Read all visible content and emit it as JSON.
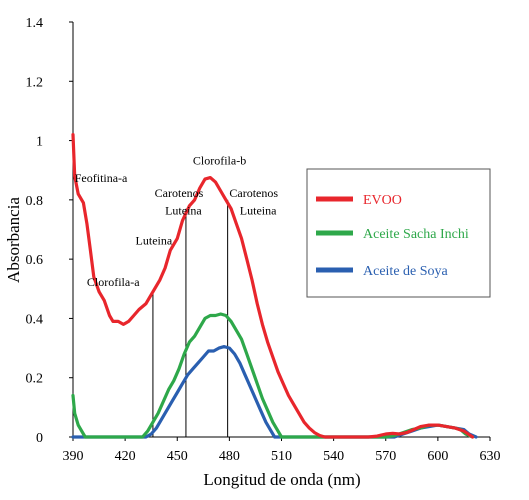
{
  "chart_data": {
    "type": "line",
    "xlabel": "Longitud de onda (nm)",
    "ylabel": "Absorbancia",
    "xlim": [
      390,
      630
    ],
    "ylim": [
      0,
      1.4
    ],
    "x_ticks": [
      "390",
      "420",
      "450",
      "480",
      "510",
      "540",
      "570",
      "600",
      "630"
    ],
    "y_ticks": [
      "0",
      "0.2",
      "0.4",
      "0.6",
      "0.8",
      "1",
      "1.2",
      "1.4"
    ],
    "grid": false,
    "legend_position": "right",
    "series": [
      {
        "name": "EVOO",
        "color": "#e8262c",
        "points": [
          [
            390,
            1.02
          ],
          [
            391,
            0.88
          ],
          [
            393,
            0.82
          ],
          [
            396,
            0.79
          ],
          [
            398,
            0.72
          ],
          [
            400,
            0.63
          ],
          [
            402,
            0.54
          ],
          [
            405,
            0.49
          ],
          [
            408,
            0.46
          ],
          [
            411,
            0.41
          ],
          [
            413,
            0.39
          ],
          [
            416,
            0.39
          ],
          [
            419,
            0.38
          ],
          [
            422,
            0.39
          ],
          [
            425,
            0.41
          ],
          [
            428,
            0.43
          ],
          [
            432,
            0.45
          ],
          [
            436,
            0.49
          ],
          [
            440,
            0.53
          ],
          [
            443,
            0.57
          ],
          [
            446,
            0.63
          ],
          [
            450,
            0.67
          ],
          [
            453,
            0.73
          ],
          [
            457,
            0.78
          ],
          [
            460,
            0.8
          ],
          [
            463,
            0.84
          ],
          [
            466,
            0.87
          ],
          [
            469,
            0.875
          ],
          [
            472,
            0.86
          ],
          [
            475,
            0.83
          ],
          [
            478,
            0.8
          ],
          [
            481,
            0.77
          ],
          [
            484,
            0.72
          ],
          [
            487,
            0.67
          ],
          [
            490,
            0.6
          ],
          [
            493,
            0.53
          ],
          [
            496,
            0.45
          ],
          [
            499,
            0.38
          ],
          [
            502,
            0.32
          ],
          [
            505,
            0.27
          ],
          [
            508,
            0.22
          ],
          [
            511,
            0.18
          ],
          [
            514,
            0.14
          ],
          [
            517,
            0.11
          ],
          [
            520,
            0.08
          ],
          [
            523,
            0.05
          ],
          [
            526,
            0.03
          ],
          [
            529,
            0.015
          ],
          [
            532,
            0.005
          ],
          [
            535,
            0.0
          ],
          [
            540,
            0.0
          ],
          [
            548,
            0.0
          ],
          [
            555,
            0.0
          ],
          [
            560,
            0.0
          ],
          [
            565,
            0.003
          ],
          [
            570,
            0.01
          ],
          [
            574,
            0.012
          ],
          [
            578,
            0.01
          ],
          [
            582,
            0.015
          ],
          [
            586,
            0.025
          ],
          [
            590,
            0.035
          ],
          [
            595,
            0.04
          ],
          [
            600,
            0.04
          ],
          [
            605,
            0.035
          ],
          [
            610,
            0.03
          ],
          [
            615,
            0.02
          ],
          [
            620,
            0.0
          ]
        ]
      },
      {
        "name": "Aceite Sacha Inchi",
        "color": "#2ea84a",
        "points": [
          [
            390,
            0.14
          ],
          [
            391,
            0.08
          ],
          [
            393,
            0.04
          ],
          [
            395,
            0.02
          ],
          [
            397,
            0.0
          ],
          [
            400,
            0.0
          ],
          [
            410,
            0.0
          ],
          [
            420,
            0.0
          ],
          [
            430,
            0.0
          ],
          [
            433,
            0.02
          ],
          [
            436,
            0.05
          ],
          [
            439,
            0.08
          ],
          [
            442,
            0.12
          ],
          [
            445,
            0.16
          ],
          [
            448,
            0.19
          ],
          [
            451,
            0.23
          ],
          [
            454,
            0.28
          ],
          [
            457,
            0.32
          ],
          [
            460,
            0.34
          ],
          [
            463,
            0.37
          ],
          [
            466,
            0.4
          ],
          [
            469,
            0.41
          ],
          [
            472,
            0.41
          ],
          [
            475,
            0.415
          ],
          [
            478,
            0.41
          ],
          [
            481,
            0.39
          ],
          [
            484,
            0.36
          ],
          [
            487,
            0.33
          ],
          [
            490,
            0.28
          ],
          [
            493,
            0.23
          ],
          [
            496,
            0.18
          ],
          [
            499,
            0.13
          ],
          [
            502,
            0.09
          ],
          [
            505,
            0.05
          ],
          [
            508,
            0.02
          ],
          [
            510,
            0.0
          ],
          [
            520,
            0.0
          ],
          [
            540,
            0.0
          ],
          [
            560,
            0.0
          ],
          [
            570,
            0.0
          ],
          [
            575,
            0.005
          ],
          [
            580,
            0.015
          ],
          [
            585,
            0.025
          ],
          [
            590,
            0.03
          ],
          [
            595,
            0.04
          ],
          [
            600,
            0.04
          ],
          [
            605,
            0.035
          ],
          [
            610,
            0.03
          ],
          [
            613,
            0.025
          ],
          [
            616,
            0.01
          ],
          [
            620,
            0.0
          ]
        ]
      },
      {
        "name": "Aceite de Soya",
        "color": "#2a5fb0",
        "points": [
          [
            390,
            0.0
          ],
          [
            400,
            0.0
          ],
          [
            420,
            0.0
          ],
          [
            432,
            0.0
          ],
          [
            435,
            0.01
          ],
          [
            438,
            0.03
          ],
          [
            441,
            0.06
          ],
          [
            444,
            0.09
          ],
          [
            447,
            0.12
          ],
          [
            450,
            0.15
          ],
          [
            453,
            0.18
          ],
          [
            456,
            0.21
          ],
          [
            459,
            0.23
          ],
          [
            462,
            0.25
          ],
          [
            465,
            0.27
          ],
          [
            468,
            0.29
          ],
          [
            471,
            0.29
          ],
          [
            474,
            0.3
          ],
          [
            477,
            0.305
          ],
          [
            480,
            0.3
          ],
          [
            483,
            0.28
          ],
          [
            486,
            0.25
          ],
          [
            489,
            0.21
          ],
          [
            492,
            0.17
          ],
          [
            495,
            0.13
          ],
          [
            498,
            0.09
          ],
          [
            501,
            0.05
          ],
          [
            504,
            0.02
          ],
          [
            506,
            0.0
          ],
          [
            520,
            0.0
          ],
          [
            560,
            0.0
          ],
          [
            575,
            0.0
          ],
          [
            580,
            0.01
          ],
          [
            585,
            0.02
          ],
          [
            590,
            0.03
          ],
          [
            595,
            0.035
          ],
          [
            600,
            0.04
          ],
          [
            605,
            0.035
          ],
          [
            610,
            0.03
          ],
          [
            615,
            0.025
          ],
          [
            618,
            0.01
          ],
          [
            622,
            0.0
          ]
        ]
      }
    ],
    "marker_lines": [
      {
        "x": 436,
        "y": 0.49
      },
      {
        "x": 455,
        "y": 0.77
      },
      {
        "x": 479,
        "y": 0.8
      }
    ],
    "annotations": [
      {
        "text": "Feofitina-a",
        "x": 391,
        "y": 0.86
      },
      {
        "text": "Clorofila-a",
        "x": 398,
        "y": 0.51
      },
      {
        "text": "Luteina",
        "x": 426,
        "y": 0.65
      },
      {
        "text": "Carotenos",
        "x": 437,
        "y": 0.81
      },
      {
        "text": "Luteina",
        "x": 443,
        "y": 0.75
      },
      {
        "text": "Clorofila-b",
        "x": 459,
        "y": 0.92
      },
      {
        "text": "Carotenos",
        "x": 480,
        "y": 0.81
      },
      {
        "text": "Luteina",
        "x": 486,
        "y": 0.75
      }
    ]
  }
}
